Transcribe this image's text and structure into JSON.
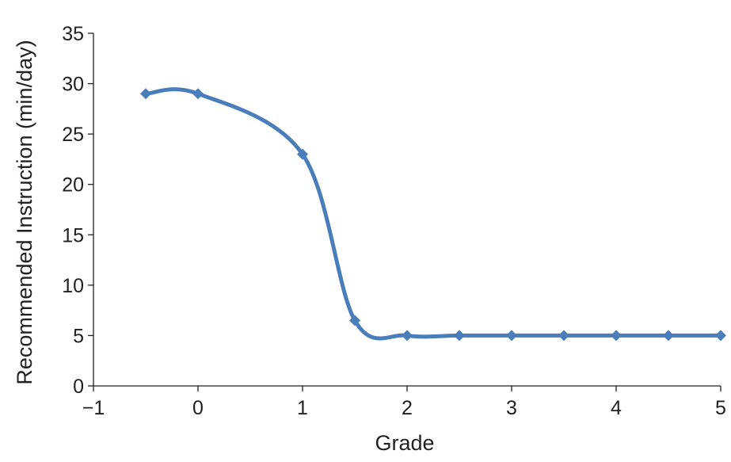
{
  "chart_data": {
    "type": "line",
    "title": "",
    "xlabel": "Grade",
    "ylabel": "Recommended Instruction (min/day)",
    "xlim": [
      -1,
      5
    ],
    "ylim": [
      0,
      35
    ],
    "x_ticks": [
      -1,
      0,
      1,
      2,
      3,
      4,
      5
    ],
    "x_tick_labels": [
      "−1",
      "0",
      "1",
      "2",
      "3",
      "4",
      "5"
    ],
    "y_ticks": [
      0,
      5,
      10,
      15,
      20,
      25,
      30,
      35
    ],
    "y_tick_labels": [
      "0",
      "5",
      "10",
      "15",
      "20",
      "25",
      "30",
      "35"
    ],
    "grid": false,
    "legend": "none",
    "series": [
      {
        "color": "#4a7ebb",
        "marker": "diamond",
        "smooth": true,
        "x": [
          -0.5,
          0,
          1,
          1.5,
          2,
          2.5,
          3,
          3.5,
          4,
          4.5,
          5
        ],
        "y": [
          29,
          29,
          23,
          6.5,
          5,
          5,
          5,
          5,
          5,
          5,
          5
        ]
      }
    ]
  }
}
